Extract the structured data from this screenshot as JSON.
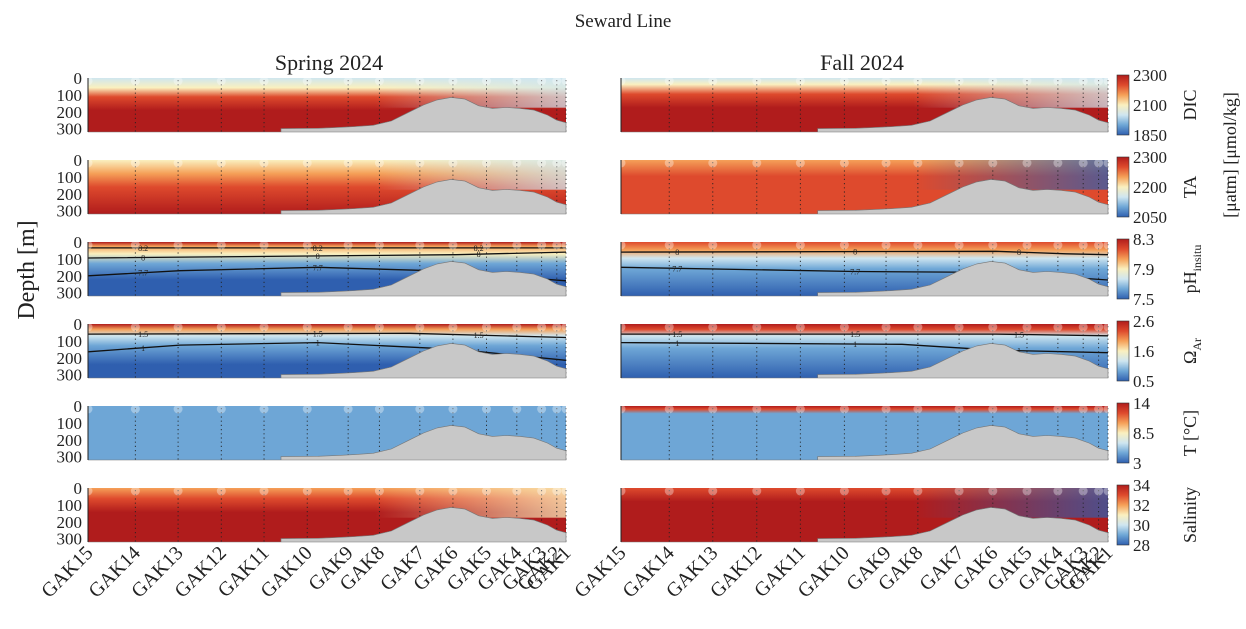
{
  "figure": {
    "title": "Seward Line",
    "ylabel": "Depth [m]"
  },
  "columns": [
    {
      "title": "Spring 2024"
    },
    {
      "title": "Fall 2024"
    }
  ],
  "colors": {
    "bathymetry": "#c8c8c8",
    "contour": "#111111",
    "colormap": [
      "#2f5faf",
      "#6ea6d6",
      "#cfe6f0",
      "#faf0bf",
      "#f5a058",
      "#de4a2d",
      "#b01c1c"
    ],
    "colormap_note_values": "blue = low, red = high"
  },
  "chart_data": {
    "type": "heatmap",
    "subtype": "section contour plots",
    "stations": [
      "GAK15",
      "GAK14",
      "GAK13",
      "GAK12",
      "GAK11",
      "GAK10",
      "GAK9",
      "GAK8",
      "GAK7",
      "GAK6",
      "GAK5",
      "GAK4",
      "GAK3",
      "GAK2",
      "GAK1"
    ],
    "station_position": [
      0,
      0.103,
      0.196,
      0.29,
      0.383,
      0.477,
      0.566,
      0.634,
      0.722,
      0.794,
      0.867,
      0.933,
      0.987,
      1.02,
      1.04
    ],
    "depth_ticks": [
      "0",
      "100",
      "200",
      "300"
    ],
    "depth_range": [
      0,
      320
    ],
    "variables": [
      {
        "key": "dic",
        "colorbar_label": "DIC",
        "colorbar_ticks": [
          "2300",
          "2100",
          "1850"
        ],
        "range": [
          1850,
          2300
        ],
        "contours": []
      },
      {
        "key": "ta",
        "colorbar_label": "TA",
        "colorbar_ticks": [
          "2300",
          "2200",
          "2050"
        ],
        "range": [
          2050,
          2300
        ],
        "contours": []
      },
      {
        "key": "ph",
        "colorbar_label": "pH",
        "colorbar_label_sub": "insitu",
        "colorbar_ticks": [
          "8.3",
          "7.9",
          "7.5"
        ],
        "range": [
          7.5,
          8.3
        ],
        "contours": [
          {
            "value": "8.2",
            "spring_labels": true,
            "fall_labels": false
          },
          {
            "value": "8",
            "spring_labels": true,
            "fall_labels": true
          },
          {
            "value": "7.7",
            "spring_labels": true,
            "fall_labels": true
          }
        ]
      },
      {
        "key": "omega",
        "colorbar_label": "Ω",
        "colorbar_label_sub": "Ar",
        "colorbar_ticks": [
          "2.6",
          "1.6",
          "0.5"
        ],
        "range": [
          0.5,
          2.6
        ],
        "contours": [
          {
            "value": "1.5",
            "spring_labels": true,
            "fall_labels": true
          },
          {
            "value": "1",
            "spring_labels": true,
            "fall_labels": true
          }
        ]
      },
      {
        "key": "temp",
        "colorbar_label": "T [°C]",
        "colorbar_ticks": [
          "14",
          "8.5",
          "3"
        ],
        "range": [
          3,
          14
        ],
        "contours": []
      },
      {
        "key": "sal",
        "colorbar_label": "Salinity",
        "colorbar_ticks": [
          "34",
          "32",
          "30",
          "28"
        ],
        "range": [
          28,
          34
        ],
        "contours": []
      }
    ],
    "shared_unit_label": "[μatm] [μmol/kg]"
  }
}
